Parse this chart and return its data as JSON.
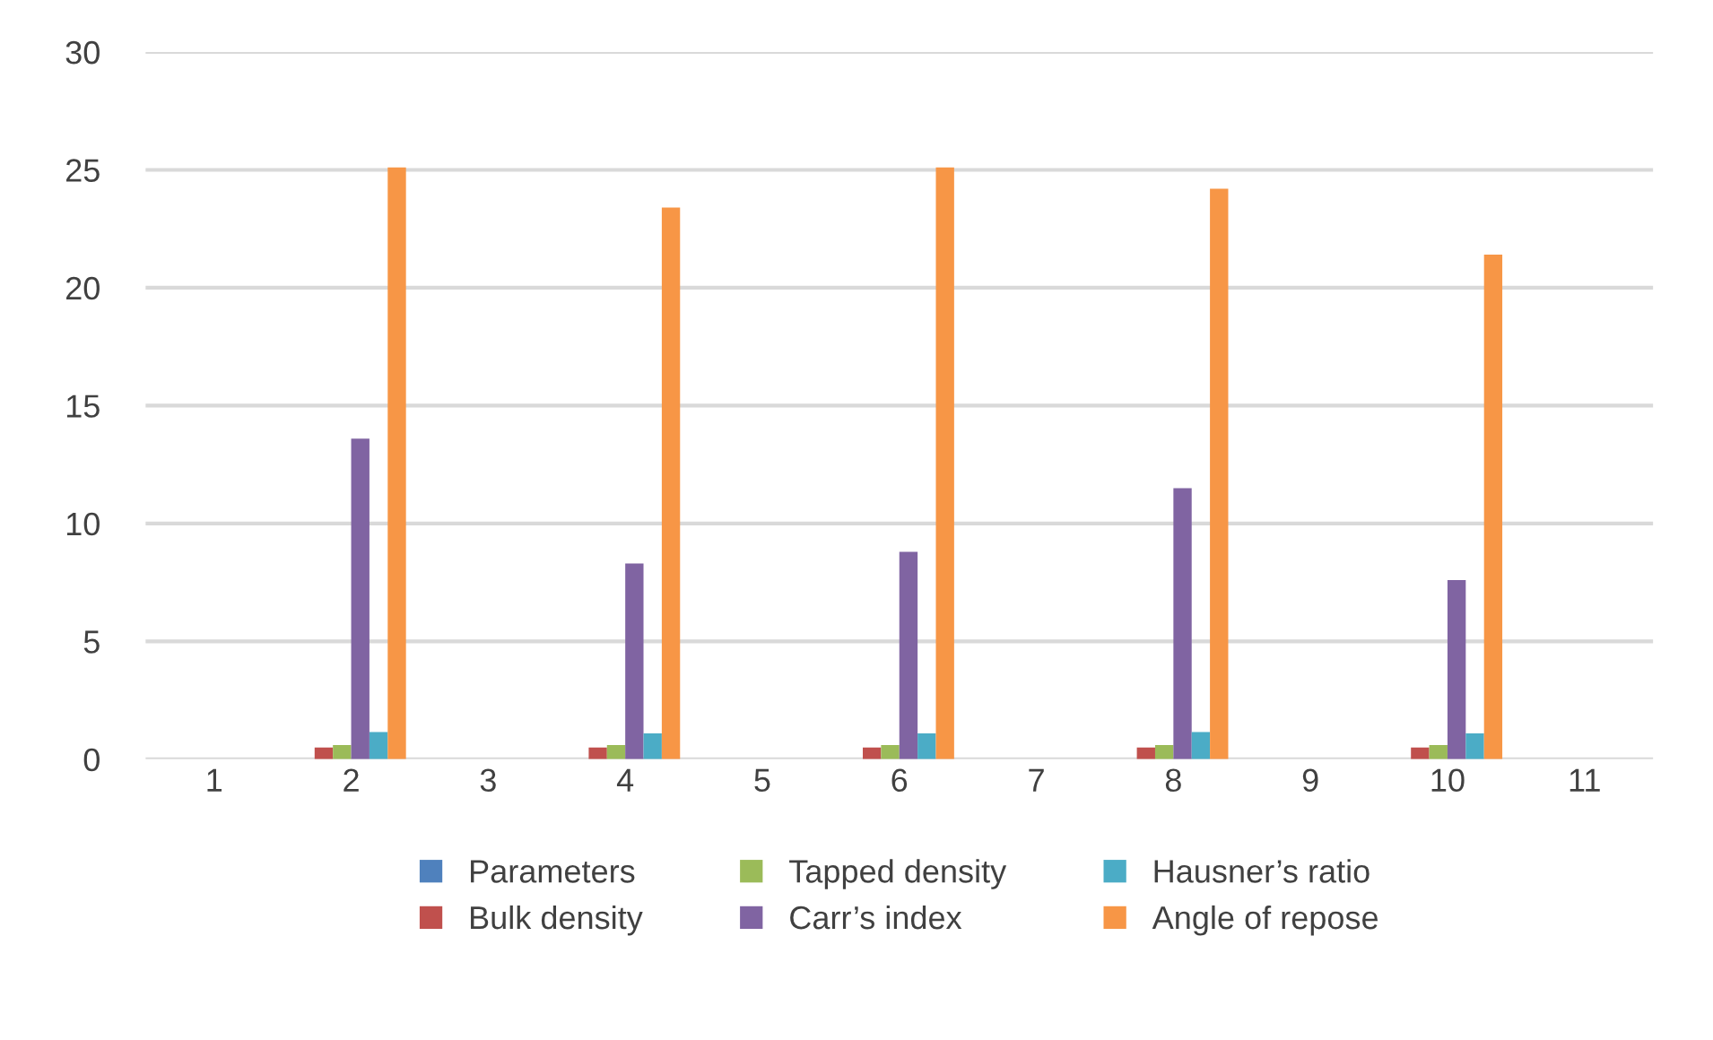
{
  "chart_data": {
    "type": "bar",
    "categories": [
      "1",
      "2",
      "3",
      "4",
      "5",
      "6",
      "7",
      "8",
      "9",
      "10",
      "11"
    ],
    "series": [
      {
        "name": "Parameters",
        "color": "#4f81bd",
        "values": [
          0,
          0,
          null,
          0,
          null,
          0,
          null,
          0,
          null,
          0,
          null
        ]
      },
      {
        "name": "Bulk density",
        "color": "#c0504d",
        "values": [
          0,
          0.5,
          null,
          0.5,
          null,
          0.5,
          null,
          0.5,
          null,
          0.5,
          null
        ]
      },
      {
        "name": "Tapped density",
        "color": "#9bbb59",
        "values": [
          0,
          0.6,
          null,
          0.6,
          null,
          0.6,
          null,
          0.6,
          null,
          0.6,
          null
        ]
      },
      {
        "name": "Carr’s index",
        "color": "#8064a2",
        "values": [
          0,
          13.6,
          null,
          8.3,
          null,
          8.8,
          null,
          11.5,
          null,
          7.6,
          null
        ]
      },
      {
        "name": "Hausner’s ratio",
        "color": "#4bacc6",
        "values": [
          null,
          1.15,
          null,
          1.1,
          null,
          1.1,
          null,
          1.15,
          null,
          1.1,
          null
        ]
      },
      {
        "name": "Angle of repose",
        "color": "#f79646",
        "values": [
          null,
          25.1,
          null,
          23.4,
          null,
          25.1,
          null,
          24.2,
          null,
          21.4,
          null
        ]
      }
    ],
    "ylim": [
      0,
      30
    ],
    "yticks": [
      0,
      5,
      10,
      15,
      20,
      25,
      30
    ],
    "grid": "y",
    "legend": "bottom"
  }
}
